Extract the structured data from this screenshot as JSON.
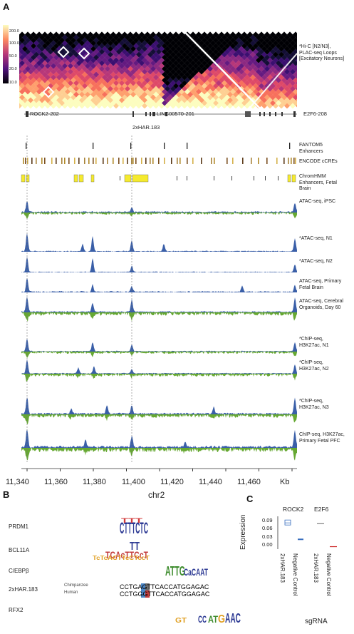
{
  "panels": {
    "a": "A",
    "b": "B",
    "c": "C"
  },
  "hic": {
    "colorbar_ticks": [
      "200.0",
      "100.0",
      "50.0",
      "20.0",
      "10.0"
    ],
    "label": "*Hi-C [N2/N3],\nPLAC-seq Loops\n[Excitatory Neurons]"
  },
  "genes": {
    "g1": "ROCK2-202",
    "g2": "LINC00570-201",
    "g3": "E2F6-208",
    "har": "2xHAR.183"
  },
  "tracks": [
    {
      "label": "FANTOM5\nEnhancers"
    },
    {
      "label": "ENCODE cCREs"
    },
    {
      "label": "ChromHMM\nEnhancers, Fetal\nBrain"
    },
    {
      "label": "ATAC-seq, iPSC"
    },
    {
      "label": "*ATAC-seq, N1"
    },
    {
      "label": "*ATAC-seq, N2"
    },
    {
      "label": "ATAC-seq, Primary\nFetal Brain"
    },
    {
      "label": "ATAC-seq, Cerebral\nOrganoids, Day 60"
    },
    {
      "label": "*ChIP-seq,\nH3K27ac, N1"
    },
    {
      "label": "*ChIP-seq,\nH3K27ac, N2"
    },
    {
      "label": "*ChIP-seq,\nH3K27ac, N3"
    },
    {
      "label": "ChIP-seq, H3K27ac,\nPrimary Fetal PFC"
    }
  ],
  "axis": {
    "ticks": [
      "11,340",
      "11,360",
      "11,380",
      "11,400",
      "11,420",
      "11,440",
      "11,460"
    ],
    "unit": "Kb",
    "chrom": "chr2"
  },
  "motifs": {
    "m1": "PRDM1",
    "m2": "BCL11A",
    "m3": "C/EBPβ",
    "m4": "2xHAR.183",
    "m5": "RFX2",
    "chimp": "Chimpanzee",
    "human": "Human",
    "seq_chimp": "CCTGAGTTCACCATGGAGAC",
    "seq_human": "CCTGGGTTCACCATGGAGAC"
  },
  "expression": {
    "ylabel": "Expression",
    "xlabel": "sgRNA",
    "yticks": [
      "0.09",
      "0.06",
      "0.03",
      "0.00"
    ],
    "groups": [
      "ROCK2",
      "E2F6"
    ],
    "conditions": [
      "2xHAR.183",
      "Negative Control"
    ],
    "chart_data": {
      "type": "box",
      "ylim": [
        0,
        0.12
      ],
      "series": [
        {
          "name": "ROCK2",
          "2xHAR.183": 0.095,
          "Negative Control": 0.032
        },
        {
          "name": "E2F6",
          "2xHAR.183": 0.092,
          "Negative Control": 0.004
        }
      ]
    }
  },
  "colors": {
    "atac": "#3a5fa8",
    "neg": "#66a832",
    "chromhmm": "#f5ea2e"
  }
}
